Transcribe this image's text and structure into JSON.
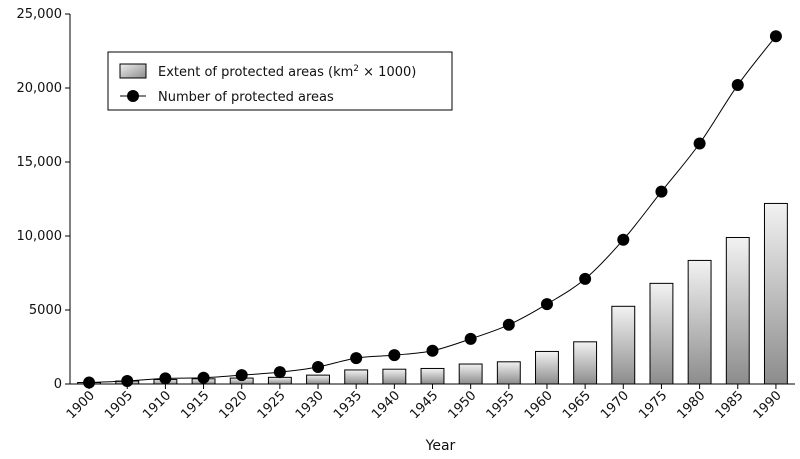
{
  "chart_data": {
    "type": "bar",
    "categories": [
      "1900",
      "1905",
      "1910",
      "1915",
      "1920",
      "1925",
      "1930",
      "1935",
      "1940",
      "1945",
      "1950",
      "1955",
      "1960",
      "1965",
      "1970",
      "1975",
      "1980",
      "1985",
      "1990"
    ],
    "series": [
      {
        "name": "Extent of protected areas (km² × 1000)",
        "kind": "bar",
        "values": [
          100,
          200,
          300,
          350,
          400,
          450,
          600,
          950,
          1000,
          1050,
          1350,
          1500,
          2200,
          2850,
          5250,
          6800,
          8350,
          9900,
          12200
        ]
      },
      {
        "name": "Number of protected areas",
        "kind": "line",
        "values": [
          100,
          200,
          380,
          420,
          600,
          800,
          1150,
          1750,
          1950,
          2250,
          3050,
          4000,
          5400,
          7100,
          9750,
          13000,
          16250,
          20200,
          23500
        ]
      }
    ],
    "xlabel": "Year",
    "ylabel": "",
    "ylim": [
      0,
      25000
    ],
    "yticks": [
      0,
      5000,
      10000,
      15000,
      20000,
      25000
    ],
    "ytick_labels": [
      "0",
      "5000",
      "10,000",
      "15,000",
      "20,000",
      "25,000"
    ],
    "legend": {
      "position": "top-left",
      "entries": [
        {
          "label_main": "Extent of protected areas (km",
          "label_sup": "2",
          "label_tail": " × 1000)"
        },
        {
          "label_main": "Number of protected areas",
          "label_sup": "",
          "label_tail": ""
        }
      ]
    },
    "grid": false
  }
}
